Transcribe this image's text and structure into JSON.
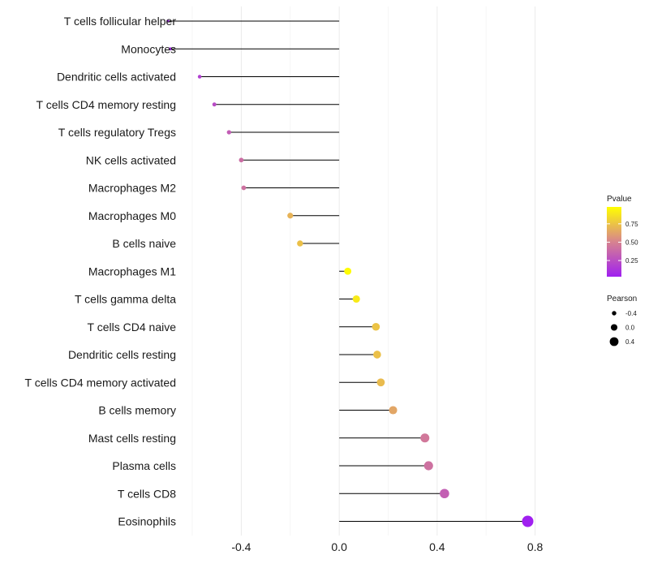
{
  "chart_data": {
    "type": "lollipop",
    "title": "",
    "xlabel": "",
    "ylabel": "",
    "xlim": [
      -0.63,
      1.05
    ],
    "xticks": [
      -0.4,
      0.0,
      0.4,
      0.8
    ],
    "xtick_labels": [
      "-0.4",
      "0.0",
      "0.4",
      "0.8"
    ],
    "grid": true,
    "series": [
      {
        "category": "T cells follicular helper",
        "pearson": -0.7,
        "pvalue": 0.05
      },
      {
        "category": "Monocytes",
        "pearson": -0.69,
        "pvalue": 0.06
      },
      {
        "category": "Dendritic cells activated",
        "pearson": -0.57,
        "pvalue": 0.18
      },
      {
        "category": "T cells CD4 memory resting",
        "pearson": -0.51,
        "pvalue": 0.24
      },
      {
        "category": "T cells regulatory  Tregs ",
        "pearson": -0.45,
        "pvalue": 0.32
      },
      {
        "category": "NK cells activated",
        "pearson": -0.4,
        "pvalue": 0.4
      },
      {
        "category": "Macrophages M2",
        "pearson": -0.39,
        "pvalue": 0.42
      },
      {
        "category": "Macrophages M0",
        "pearson": -0.2,
        "pvalue": 0.69
      },
      {
        "category": "B cells naive",
        "pearson": -0.16,
        "pvalue": 0.74
      },
      {
        "category": "Macrophages M1",
        "pearson": 0.035,
        "pvalue": 0.97
      },
      {
        "category": "T cells gamma delta",
        "pearson": 0.07,
        "pvalue": 0.9
      },
      {
        "category": "T cells CD4 naive",
        "pearson": 0.15,
        "pvalue": 0.75
      },
      {
        "category": "Dendritic cells resting",
        "pearson": 0.155,
        "pvalue": 0.74
      },
      {
        "category": "T cells CD4 memory activated",
        "pearson": 0.17,
        "pvalue": 0.72
      },
      {
        "category": "B cells memory",
        "pearson": 0.22,
        "pvalue": 0.64
      },
      {
        "category": "Mast cells resting",
        "pearson": 0.35,
        "pvalue": 0.45
      },
      {
        "category": "Plasma cells",
        "pearson": 0.365,
        "pvalue": 0.42
      },
      {
        "category": "T cells CD8",
        "pearson": 0.43,
        "pvalue": 0.33
      },
      {
        "category": "Eosinophils",
        "pearson": 0.77,
        "pvalue": 0.03
      }
    ],
    "legend": {
      "color_title": "Pvalue",
      "color_range": [
        0.03,
        0.98
      ],
      "color_ticks": [
        0.75,
        0.5,
        0.25
      ],
      "color_tick_labels": [
        "0.75",
        "0.50",
        "0.25"
      ],
      "color_low": "#a020f0",
      "color_mid": "#d7838f",
      "color_high": "#ffff00",
      "size_title": "Pearson",
      "size_values": [
        -0.4,
        0.0,
        0.4
      ],
      "size_labels": [
        "-0.4",
        "0.0",
        "0.4"
      ],
      "size_color": "#000000"
    },
    "stem_color": "#000000",
    "grid_color": "#ebebeb"
  }
}
